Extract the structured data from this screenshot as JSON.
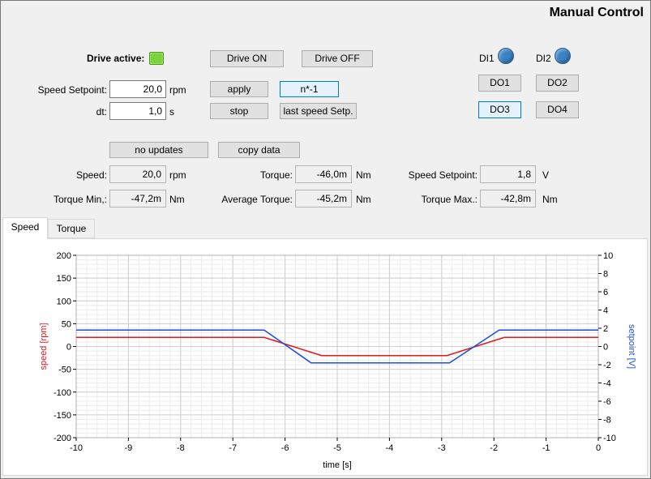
{
  "title": "Manual Control",
  "drive": {
    "active_label": "Drive active:",
    "on_button": "Drive ON",
    "off_button": "Drive OFF"
  },
  "io": {
    "di1": "DI1",
    "di2": "DI2",
    "do1": "DO1",
    "do2": "DO2",
    "do3": "DO3",
    "do4": "DO4",
    "led_color": "#3b82c4"
  },
  "setpoint": {
    "speed_label": "Speed Setpoint:",
    "speed_value": "20,0",
    "speed_unit": "rpm",
    "dt_label": "dt:",
    "dt_value": "1,0",
    "dt_unit": "s"
  },
  "buttons": {
    "apply": "apply",
    "nstar": "n*-1",
    "stop": "stop",
    "last": "last speed Setp.",
    "no_updates": "no updates",
    "copy": "copy data"
  },
  "readouts": {
    "speed_label": "Speed:",
    "speed_value": "20,0",
    "speed_unit": "rpm",
    "torque_label": "Torque:",
    "torque_value": "-46,0m",
    "torque_unit": "Nm",
    "speed_sp_label": "Speed Setpoint:",
    "speed_sp_value": "1,8",
    "speed_sp_unit": "V",
    "tmin_label": "Torque Min,:",
    "tmin_value": "-47,2m",
    "tmin_unit": "Nm",
    "tavg_label": "Average Torque:",
    "tavg_value": "-45,2m",
    "tavg_unit": "Nm",
    "tmax_label": "Torque Max.:",
    "tmax_value": "-42,8m",
    "tmax_unit": "Nm"
  },
  "tabs": [
    {
      "label": "Speed",
      "active": true
    },
    {
      "label": "Torque",
      "active": false
    }
  ],
  "chart_data": {
    "type": "line",
    "xlabel": "time [s]",
    "ylabel": "speed [rpm]",
    "y2label": "setpoint [V]",
    "xlim": [
      -10,
      0
    ],
    "ylim": [
      -200,
      200
    ],
    "y2lim": [
      -10,
      10
    ],
    "x_ticks": [
      -10,
      -9,
      -8,
      -7,
      -6,
      -5,
      -4,
      -3,
      -2,
      -1,
      0
    ],
    "y_ticks": [
      200,
      150,
      100,
      50,
      0,
      -50,
      -100,
      -150,
      -200
    ],
    "y2_ticks": [
      10,
      8,
      6,
      4,
      2,
      0,
      -2,
      -4,
      -6,
      -8,
      -10
    ],
    "grid": true,
    "series": [
      {
        "axis": "left",
        "color": "#e31a1c",
        "x": [
          -10,
          -6.4,
          -5.3,
          -2.9,
          -1.8,
          0
        ],
        "y": [
          20,
          20,
          -20,
          -20,
          20,
          20
        ]
      },
      {
        "axis": "right",
        "color": "#1f4fe0",
        "x": [
          -10,
          -6.4,
          -5.5,
          -2.85,
          -1.9,
          0
        ],
        "y": [
          1.8,
          1.8,
          -1.8,
          -1.8,
          1.8,
          1.8
        ]
      }
    ]
  }
}
